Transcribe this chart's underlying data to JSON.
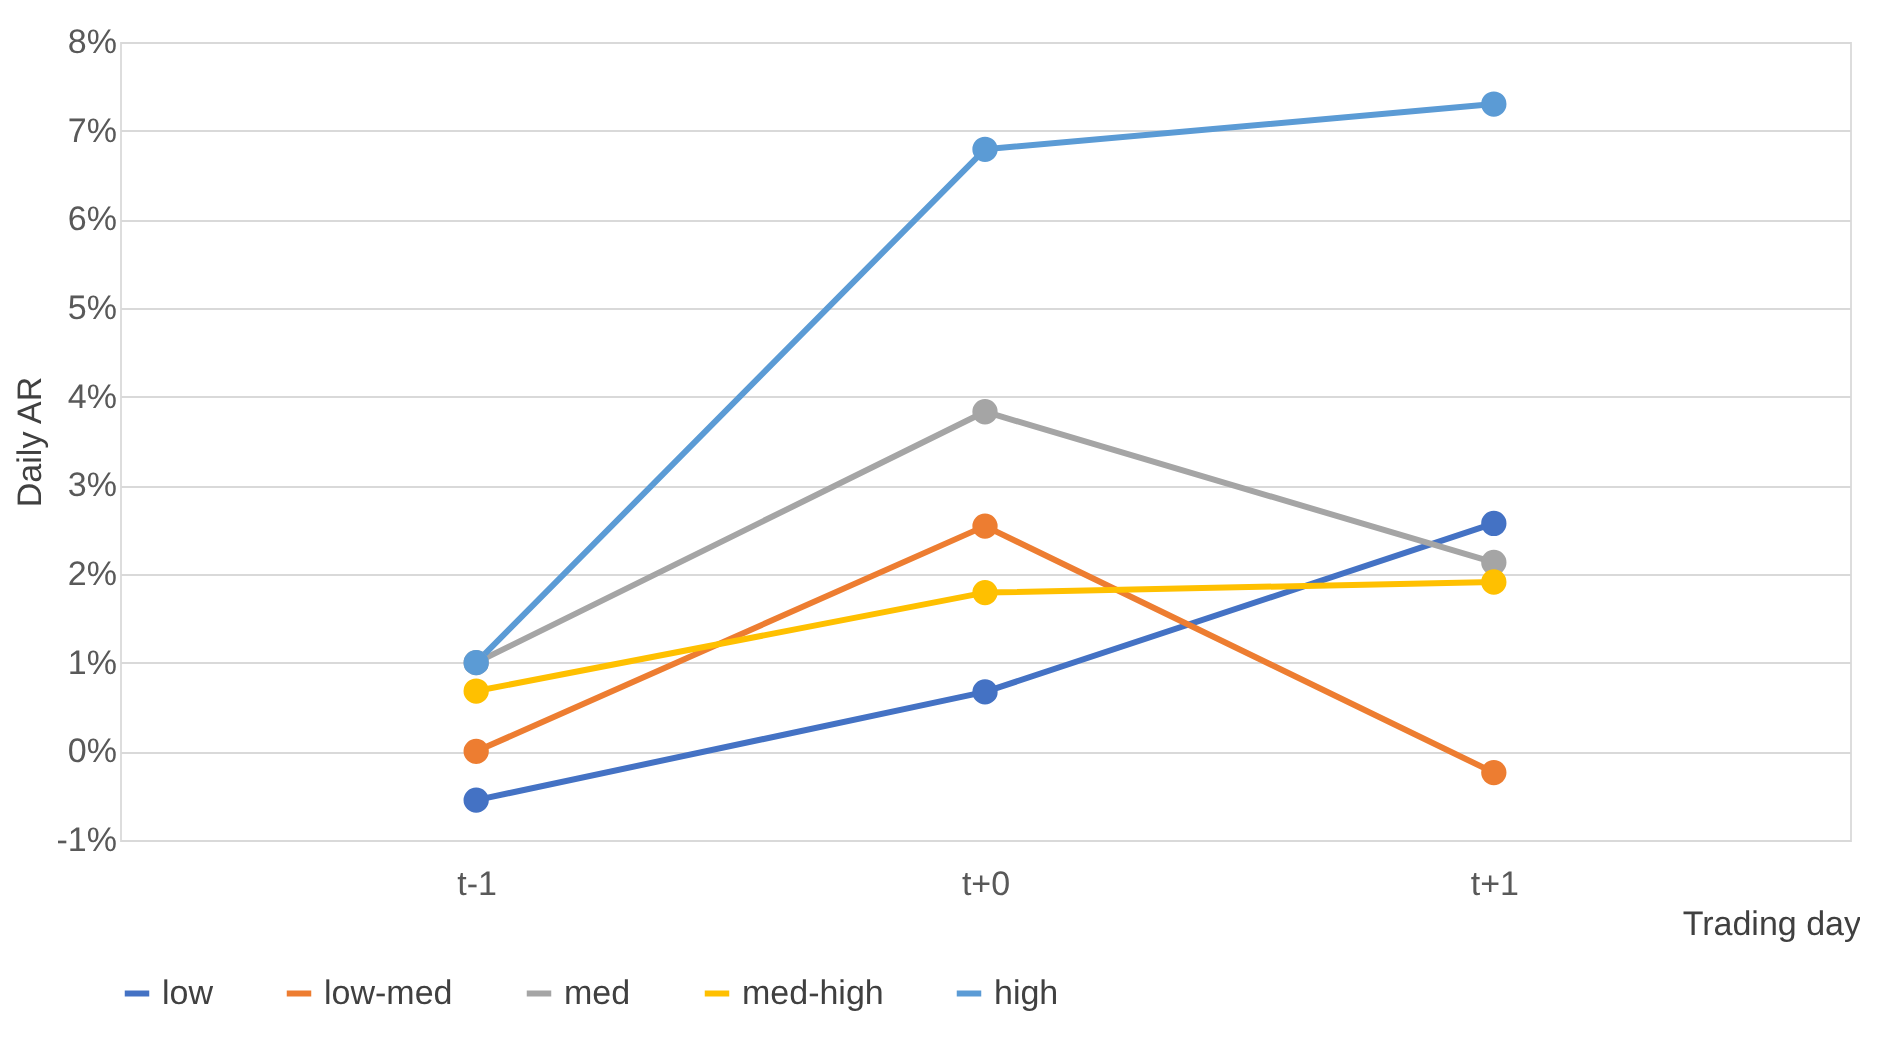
{
  "chart_data": {
    "type": "line",
    "xlabel": "Trading day",
    "ylabel": "Daily AR",
    "categories": [
      "t-1",
      "t+0",
      "t+1"
    ],
    "series": [
      {
        "name": "low",
        "color": "#4472c4",
        "values": [
          -0.55,
          0.67,
          2.57
        ]
      },
      {
        "name": "low-med",
        "color": "#ed7d31",
        "values": [
          0.0,
          2.54,
          -0.24
        ]
      },
      {
        "name": "med",
        "color": "#a5a5a5",
        "values": [
          1.0,
          3.83,
          2.13
        ]
      },
      {
        "name": "med-high",
        "color": "#ffc000",
        "values": [
          0.68,
          1.79,
          1.91
        ]
      },
      {
        "name": "high",
        "color": "#5b9bd5",
        "values": [
          1.0,
          6.79,
          7.3
        ]
      }
    ],
    "ylim": [
      -1,
      8
    ],
    "yticks": [
      {
        "value": -1,
        "label": "-1%"
      },
      {
        "value": 0,
        "label": "0%"
      },
      {
        "value": 1,
        "label": "1%"
      },
      {
        "value": 2,
        "label": "2%"
      },
      {
        "value": 3,
        "label": "3%"
      },
      {
        "value": 4,
        "label": "4%"
      },
      {
        "value": 5,
        "label": "5%"
      },
      {
        "value": 6,
        "label": "6%"
      },
      {
        "value": 7,
        "label": "7%"
      },
      {
        "value": 8,
        "label": "8%"
      }
    ],
    "grid": "y",
    "legend": "bottom",
    "marker": "circle",
    "line_style": "solid"
  }
}
